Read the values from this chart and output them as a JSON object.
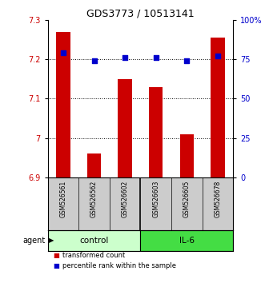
{
  "title": "GDS3773 / 10513141",
  "samples": [
    "GSM526561",
    "GSM526562",
    "GSM526602",
    "GSM526603",
    "GSM526605",
    "GSM526678"
  ],
  "bar_values": [
    7.27,
    6.96,
    7.15,
    7.13,
    7.01,
    7.255
  ],
  "percentile_values": [
    79,
    74,
    76,
    76,
    74,
    77
  ],
  "ylim_left": [
    6.9,
    7.3
  ],
  "ylim_right": [
    0,
    100
  ],
  "yticks_left": [
    6.9,
    7.0,
    7.1,
    7.2,
    7.3
  ],
  "ytick_labels_left": [
    "6.9",
    "7",
    "7.1",
    "7.2",
    "7.3"
  ],
  "yticks_right": [
    0,
    25,
    50,
    75,
    100
  ],
  "ytick_labels_right": [
    "0",
    "25",
    "50",
    "75",
    "100%"
  ],
  "bar_color": "#cc0000",
  "dot_color": "#0000cc",
  "groups": [
    {
      "label": "control",
      "indices": [
        0,
        1,
        2
      ],
      "color": "#ccffcc"
    },
    {
      "label": "IL-6",
      "indices": [
        3,
        4,
        5
      ],
      "color": "#44dd44"
    }
  ],
  "agent_label": "agent",
  "legend_items": [
    {
      "label": "transformed count",
      "color": "#cc0000"
    },
    {
      "label": "percentile rank within the sample",
      "color": "#0000cc"
    }
  ],
  "bar_width": 0.45,
  "background_color": "#ffffff",
  "left_tick_color": "#cc0000",
  "right_tick_color": "#0000cc"
}
